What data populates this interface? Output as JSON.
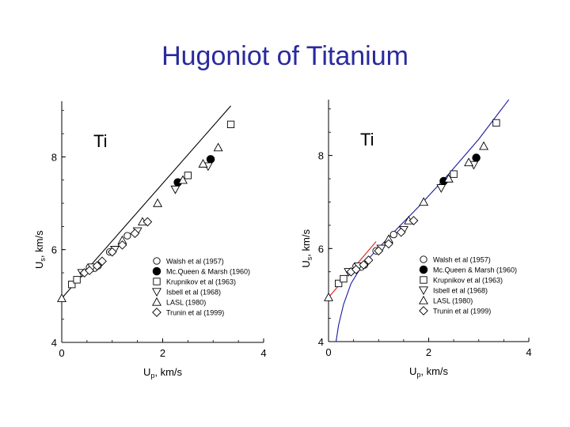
{
  "page_title": "Hugoniot of Titanium",
  "chart_data": [
    {
      "type": "scatter",
      "annotation": "Ti",
      "xlabel": "U_p, km/s",
      "ylabel": "U_s, km/s",
      "xlim": [
        0,
        4
      ],
      "ylim": [
        4,
        9.2
      ],
      "x_ticks": [
        0,
        2,
        4
      ],
      "y_ticks": [
        4,
        6,
        8
      ],
      "legend_position": "lower-right",
      "fit_lines": [
        {
          "color": "#000000",
          "x": [
            0,
            3.35
          ],
          "y": [
            4.95,
            9.1
          ]
        }
      ],
      "series": [
        {
          "name": "Walsh et al (1957)",
          "marker": "circle-open",
          "x": [
            0.65,
            0.72,
            0.55,
            0.95,
            1.3
          ],
          "y": [
            5.6,
            5.65,
            5.62,
            5.95,
            6.3
          ]
        },
        {
          "name": "Mc.Queen & Marsh (1960)",
          "marker": "circle-filled",
          "x": [
            2.3,
            2.95
          ],
          "y": [
            7.45,
            7.95
          ]
        },
        {
          "name": "Krupnikov et al (1963)",
          "marker": "square",
          "x": [
            0.2,
            0.3,
            2.5,
            3.35
          ],
          "y": [
            5.25,
            5.35,
            7.6,
            8.7
          ]
        },
        {
          "name": "Isbell et al (1968)",
          "marker": "triangle-down",
          "x": [
            0.4,
            0.6,
            1.05,
            1.5,
            2.25,
            2.9
          ],
          "y": [
            5.5,
            5.62,
            6.0,
            6.4,
            7.3,
            7.8
          ]
        },
        {
          "name": "LASL (1980)",
          "marker": "triangle-up",
          "x": [
            0.0,
            1.2,
            1.6,
            1.9,
            2.4,
            2.8,
            3.1
          ],
          "y": [
            4.95,
            6.2,
            6.6,
            7.0,
            7.5,
            7.85,
            8.2
          ]
        },
        {
          "name": "Trunin et al (1999)",
          "marker": "diamond",
          "x": [
            0.45,
            0.55,
            0.7,
            0.8,
            1.0,
            1.2,
            1.45,
            1.7
          ],
          "y": [
            5.5,
            5.55,
            5.65,
            5.75,
            5.95,
            6.1,
            6.35,
            6.6
          ]
        }
      ]
    },
    {
      "type": "scatter",
      "annotation": "Ti",
      "xlabel": "U_p, km/s",
      "ylabel": "U_s, km/s",
      "xlim": [
        0,
        4
      ],
      "ylim": [
        4,
        9.2
      ],
      "x_ticks": [
        0,
        2,
        4
      ],
      "y_ticks": [
        4,
        6,
        8
      ],
      "legend_position": "lower-right",
      "fit_lines": [
        {
          "color": "#e02020",
          "x": [
            0.0,
            0.95
          ],
          "y": [
            4.95,
            6.15
          ]
        },
        {
          "color": "#1a1aa0",
          "kind": "curve",
          "x": [
            0.15,
            0.2,
            0.3,
            0.45,
            0.65,
            0.9,
            1.3,
            1.8,
            2.4,
            3.0,
            3.6
          ],
          "y": [
            4.0,
            4.35,
            4.8,
            5.25,
            5.6,
            5.9,
            6.35,
            6.9,
            7.6,
            8.35,
            9.2
          ]
        }
      ],
      "series": [
        {
          "name": "Walsh et al (1957)",
          "marker": "circle-open",
          "x": [
            0.65,
            0.72,
            0.55,
            0.95,
            1.3
          ],
          "y": [
            5.6,
            5.65,
            5.62,
            5.95,
            6.3
          ]
        },
        {
          "name": "Mc.Queen & Marsh (1960)",
          "marker": "circle-filled",
          "x": [
            2.3,
            2.95
          ],
          "y": [
            7.45,
            7.95
          ]
        },
        {
          "name": "Krupnikov et al (1963)",
          "marker": "square",
          "x": [
            0.2,
            0.3,
            2.5,
            3.35
          ],
          "y": [
            5.25,
            5.35,
            7.6,
            8.7
          ]
        },
        {
          "name": "Isbell et al (1968)",
          "marker": "triangle-down",
          "x": [
            0.4,
            0.6,
            1.05,
            1.5,
            2.25,
            2.9
          ],
          "y": [
            5.5,
            5.62,
            6.0,
            6.4,
            7.3,
            7.8
          ]
        },
        {
          "name": "LASL (1980)",
          "marker": "triangle-up",
          "x": [
            0.0,
            1.2,
            1.6,
            1.9,
            2.4,
            2.8,
            3.1
          ],
          "y": [
            4.95,
            6.2,
            6.6,
            7.0,
            7.5,
            7.85,
            8.2
          ]
        },
        {
          "name": "Trunin et al (1999)",
          "marker": "diamond",
          "x": [
            0.45,
            0.55,
            0.7,
            0.8,
            1.0,
            1.2,
            1.45,
            1.7
          ],
          "y": [
            5.5,
            5.55,
            5.65,
            5.75,
            5.95,
            6.1,
            6.35,
            6.6
          ]
        }
      ]
    }
  ]
}
